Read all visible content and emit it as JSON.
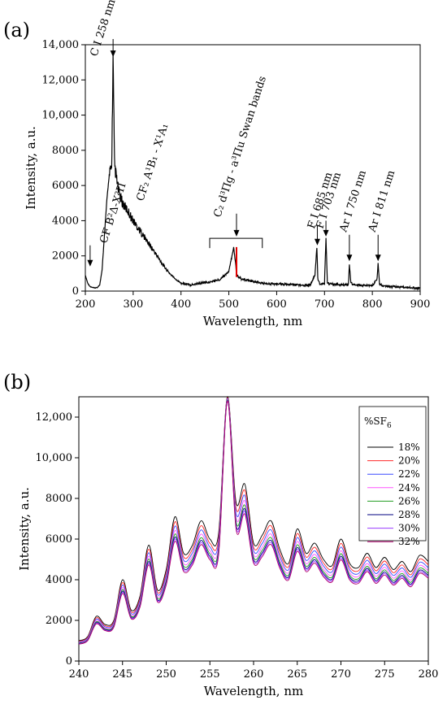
{
  "chart_data": [
    {
      "panel": "(a)",
      "type": "line",
      "title": "",
      "xlabel": "Wavelength, nm",
      "ylabel": "Intensity, a.u.",
      "xlim": [
        200,
        900
      ],
      "ylim": [
        0,
        14000
      ],
      "xticks": [
        200,
        300,
        400,
        500,
        600,
        700,
        800,
        900
      ],
      "yticks": [
        0,
        2000,
        4000,
        6000,
        8000,
        10000,
        12000,
        14000
      ],
      "ytick_labels": [
        "0",
        "2000",
        "4000",
        "6000",
        "8000",
        "10,000",
        "12,000",
        "14,000"
      ],
      "grid": false,
      "colors": {
        "line": "#000000",
        "highlight": "#e00000"
      },
      "series": [
        {
          "x": [
            200,
            205,
            210,
            215,
            220,
            225,
            230,
            235,
            240,
            245,
            250,
            255,
            258,
            261,
            265,
            270,
            275,
            280,
            290,
            300,
            310,
            320,
            330,
            340,
            350,
            360,
            370,
            380,
            390,
            400,
            420,
            440,
            460,
            480,
            500,
            505,
            510,
            514,
            516,
            520,
            525,
            530,
            540,
            550,
            560,
            570,
            580,
            600,
            620,
            640,
            660,
            670,
            680,
            684,
            686,
            690,
            700,
            703,
            706,
            710,
            720,
            740,
            750,
            752,
            755,
            760,
            780,
            800,
            810,
            812,
            815,
            820,
            840,
            860,
            880,
            900
          ],
          "y": [
            900,
            450,
            250,
            200,
            180,
            200,
            350,
            1200,
            3200,
            5200,
            6600,
            7000,
            13100,
            7200,
            6400,
            5600,
            5200,
            4900,
            4500,
            4000,
            3600,
            3200,
            2800,
            2400,
            2000,
            1600,
            1200,
            900,
            650,
            450,
            350,
            450,
            500,
            650,
            1100,
            1800,
            2500,
            1600,
            1000,
            800,
            700,
            650,
            600,
            550,
            500,
            450,
            420,
            400,
            380,
            360,
            330,
            340,
            900,
            2500,
            700,
            400,
            420,
            3000,
            500,
            420,
            380,
            350,
            380,
            1500,
            480,
            350,
            320,
            300,
            700,
            1600,
            400,
            300,
            250,
            230,
            200,
            150
          ]
        }
      ],
      "annotations": [
        {
          "text": "C I 258 nm",
          "x": 258,
          "y": 13100
        },
        {
          "text": "CF B²Δ-X²Π",
          "x": 210,
          "y": 1400
        },
        {
          "text": "CF₂ A¹B₁ - X¹A₁",
          "x": 300,
          "y": 5000
        },
        {
          "text": "C₂ d³Πg - a³Πu Swan bands",
          "x": 516,
          "y": 2500
        },
        {
          "text": "F I 685 nm",
          "x": 685,
          "y": 2500
        },
        {
          "text": "F I 703 nm",
          "x": 703,
          "y": 3000
        },
        {
          "text": "Ar I 750 nm",
          "x": 752,
          "y": 1500
        },
        {
          "text": "Ar I 811 nm",
          "x": 812,
          "y": 1600
        }
      ]
    },
    {
      "panel": "(b)",
      "type": "line",
      "title": "",
      "xlabel": "Wavelength, nm",
      "ylabel": "Intensity, a.u.",
      "xlim": [
        240,
        280
      ],
      "ylim": [
        0,
        13000
      ],
      "xticks": [
        240,
        245,
        250,
        255,
        260,
        265,
        270,
        275,
        280
      ],
      "yticks": [
        0,
        2000,
        4000,
        6000,
        8000,
        10000,
        12000
      ],
      "ytick_labels": [
        "0",
        "2000",
        "4000",
        "6000",
        "8000",
        "10,000",
        "12,000"
      ],
      "grid": false,
      "legend_title": "%SF6",
      "legend_placement": "top-right",
      "x": [
        240,
        241,
        242,
        243,
        244,
        245,
        246,
        247,
        248,
        249,
        250,
        251,
        252,
        253,
        254,
        255,
        256,
        257,
        258,
        259,
        260,
        261,
        262,
        263,
        264,
        265,
        266,
        267,
        268,
        269,
        270,
        271,
        272,
        273,
        274,
        275,
        276,
        277,
        278,
        279,
        280
      ],
      "base": [
        1000,
        1200,
        2200,
        1800,
        2000,
        4000,
        2500,
        3200,
        5700,
        3500,
        4500,
        7100,
        5300,
        5700,
        6900,
        6000,
        6300,
        13000,
        7800,
        8700,
        5800,
        6200,
        6900,
        5500,
        4800,
        6500,
        5300,
        5800,
        5000,
        4700,
        6000,
        4800,
        4600,
        5300,
        4600,
        5100,
        4500,
        4900,
        4400,
        5200,
        4900
      ],
      "series": [
        {
          "name": "18%",
          "color": "#000000",
          "scale": 1.0
        },
        {
          "name": "20%",
          "color": "#ff2a2a",
          "scale": 0.965
        },
        {
          "name": "22%",
          "color": "#3c4cff",
          "scale": 0.935
        },
        {
          "name": "24%",
          "color": "#ff55ff",
          "scale": 0.905
        },
        {
          "name": "26%",
          "color": "#1f9b1f",
          "scale": 0.88
        },
        {
          "name": "28%",
          "color": "#000080",
          "scale": 0.86
        },
        {
          "name": "30%",
          "color": "#9a3cff",
          "scale": 0.845
        },
        {
          "name": "32%",
          "color": "#b0006e",
          "scale": 0.83
        }
      ]
    }
  ]
}
